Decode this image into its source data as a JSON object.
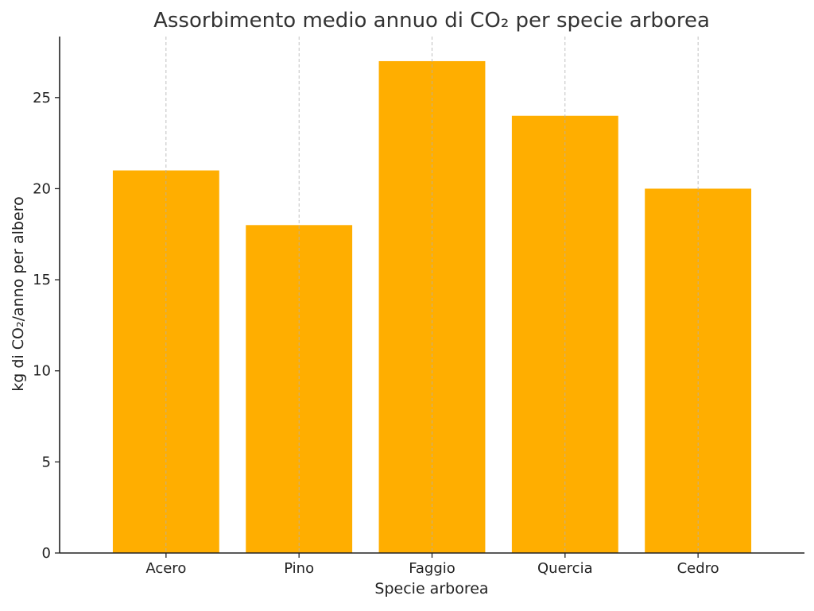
{
  "chart_data": {
    "type": "bar",
    "title": "Assorbimento medio annuo di CO₂ per specie arborea",
    "xlabel": "Specie arborea",
    "ylabel": "kg di CO₂/anno per albero",
    "categories": [
      "Acero",
      "Pino",
      "Faggio",
      "Quercia",
      "Cedro"
    ],
    "values": [
      21,
      18,
      27,
      24,
      20
    ],
    "ylim": [
      0,
      28.35
    ],
    "yticks": [
      0,
      5,
      10,
      15,
      20,
      25
    ],
    "bar_color": "#ffae00",
    "grid": {
      "x": true,
      "y": false,
      "style": "dashed"
    },
    "legend": "none"
  }
}
